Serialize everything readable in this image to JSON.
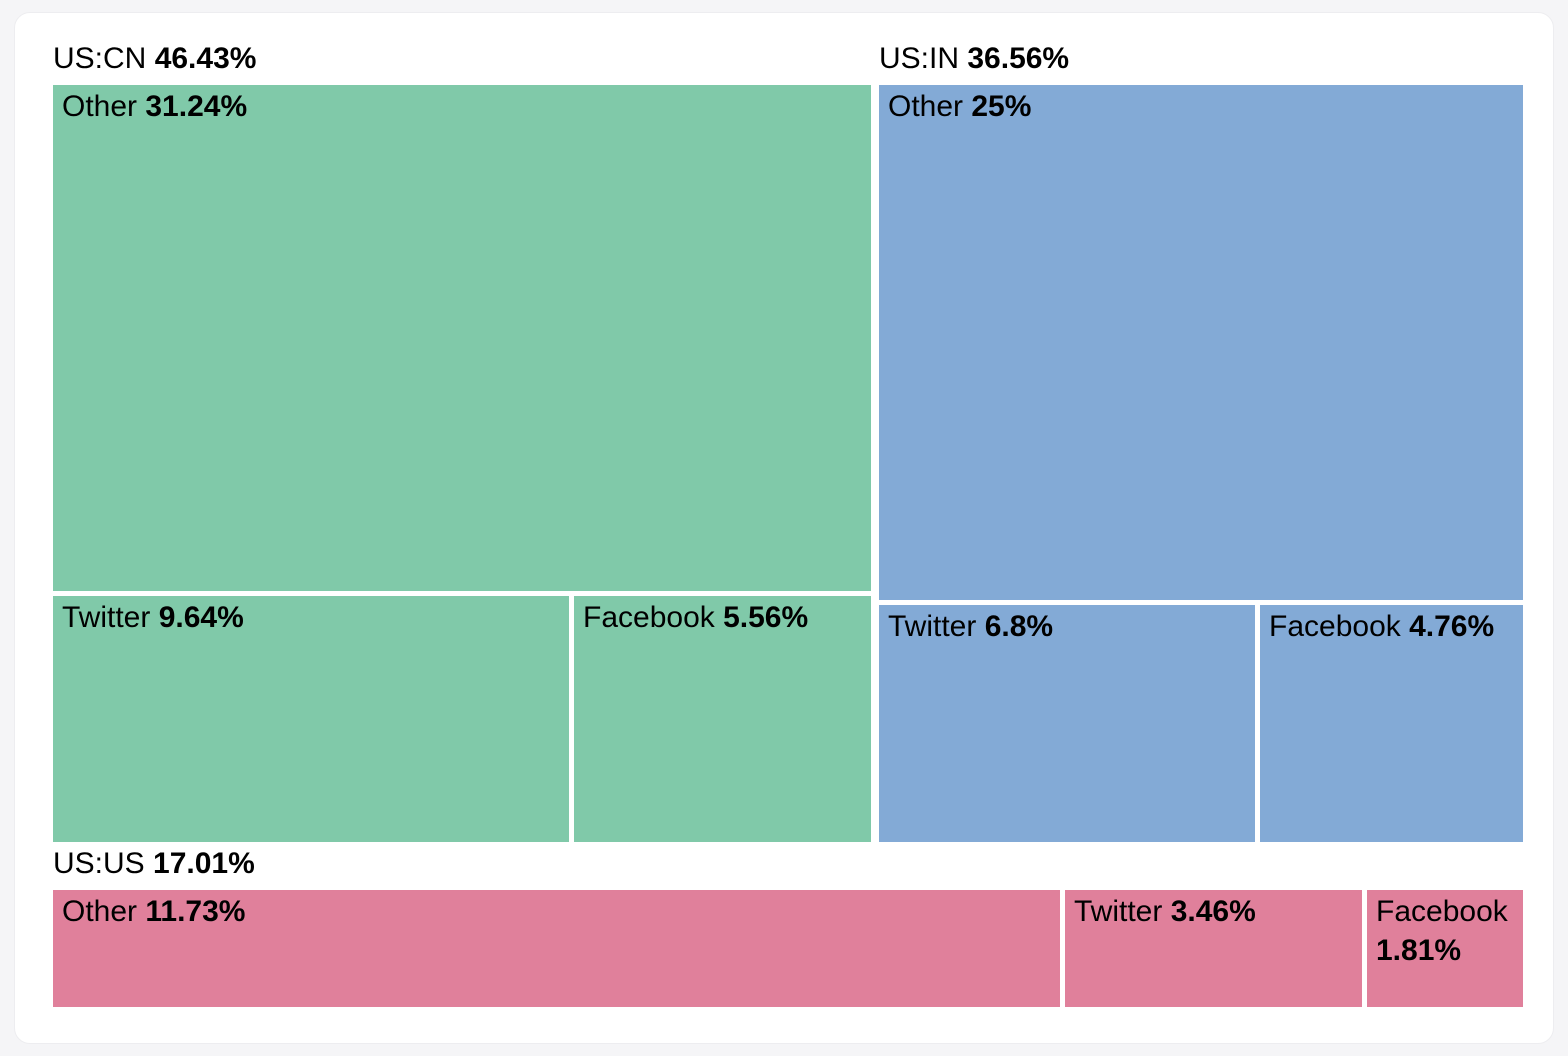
{
  "page": {
    "background": "#F5F5F7",
    "card_background": "#FFFFFF"
  },
  "chart_data": {
    "type": "treemap",
    "title": "",
    "legend_position": "none",
    "value_unit": "%",
    "layout": {
      "top_row_groups": [
        "US:CN",
        "US:IN"
      ],
      "bottom_row_groups": [
        "US:US"
      ],
      "group_header_position": "above"
    },
    "groups": [
      {
        "label": "US:CN",
        "pct_label": "46.43%",
        "value": 46.43,
        "color": "#80C9A9",
        "children": [
          {
            "label": "Other",
            "pct_label": "31.24%",
            "value": 31.24
          },
          {
            "label": "Twitter",
            "pct_label": "9.64%",
            "value": 9.64
          },
          {
            "label": "Facebook",
            "pct_label": "5.56%",
            "value": 5.56
          }
        ]
      },
      {
        "label": "US:IN",
        "pct_label": "36.56%",
        "value": 36.56,
        "color": "#83AAD6",
        "children": [
          {
            "label": "Other",
            "pct_label": "25%",
            "value": 25
          },
          {
            "label": "Twitter",
            "pct_label": "6.8%",
            "value": 6.8
          },
          {
            "label": "Facebook",
            "pct_label": "4.76%",
            "value": 4.76
          }
        ]
      },
      {
        "label": "US:US",
        "pct_label": "17.01%",
        "value": 17.01,
        "color": "#E0809B",
        "children": [
          {
            "label": "Other",
            "pct_label": "11.73%",
            "value": 11.73
          },
          {
            "label": "Twitter",
            "pct_label": "3.46%",
            "value": 3.46
          },
          {
            "label": "Facebook",
            "pct_label": "1.81%",
            "value": 1.81
          }
        ]
      }
    ]
  }
}
